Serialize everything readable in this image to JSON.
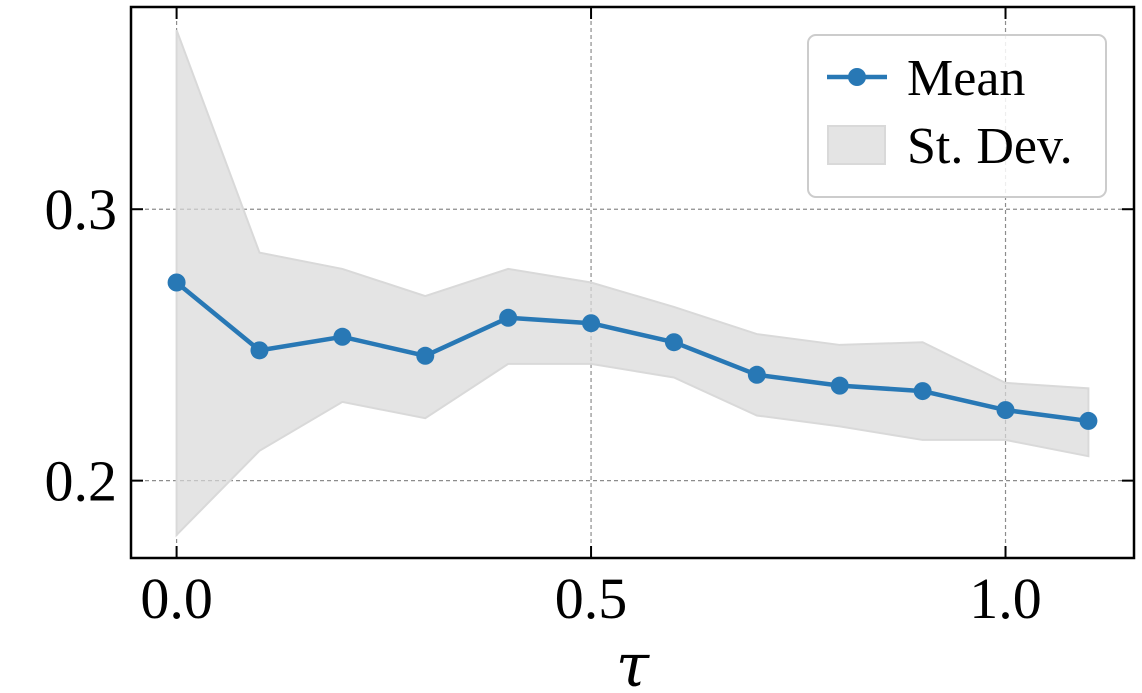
{
  "chart_data": {
    "type": "line",
    "xlabel": "τ",
    "ylabel": "",
    "title": "",
    "xlim": [
      -0.055,
      1.155
    ],
    "ylim": [
      0.1715,
      0.3745
    ],
    "xticks": [
      0.0,
      0.5,
      1.0
    ],
    "yticks": [
      0.2,
      0.3
    ],
    "xtick_labels": [
      "0.0",
      "0.5",
      "1.0"
    ],
    "ytick_labels": [
      "0.2",
      "0.3"
    ],
    "grid": true,
    "legend_position": "top-right",
    "x": [
      0.0,
      0.1,
      0.2,
      0.3,
      0.4,
      0.5,
      0.6,
      0.7,
      0.8,
      0.9,
      1.0,
      1.1
    ],
    "series": [
      {
        "name": "Mean",
        "type": "line",
        "color": "#2878b5",
        "values": [
          0.273,
          0.248,
          0.253,
          0.246,
          0.26,
          0.258,
          0.251,
          0.239,
          0.235,
          0.233,
          0.226,
          0.222
        ]
      },
      {
        "name": "St. Dev.",
        "type": "band",
        "color": "#d9d9d9",
        "lower": [
          0.18,
          0.211,
          0.229,
          0.223,
          0.243,
          0.243,
          0.238,
          0.224,
          0.22,
          0.215,
          0.215,
          0.209
        ],
        "upper": [
          0.366,
          0.284,
          0.278,
          0.268,
          0.278,
          0.273,
          0.264,
          0.254,
          0.25,
          0.251,
          0.236,
          0.234
        ]
      }
    ]
  }
}
